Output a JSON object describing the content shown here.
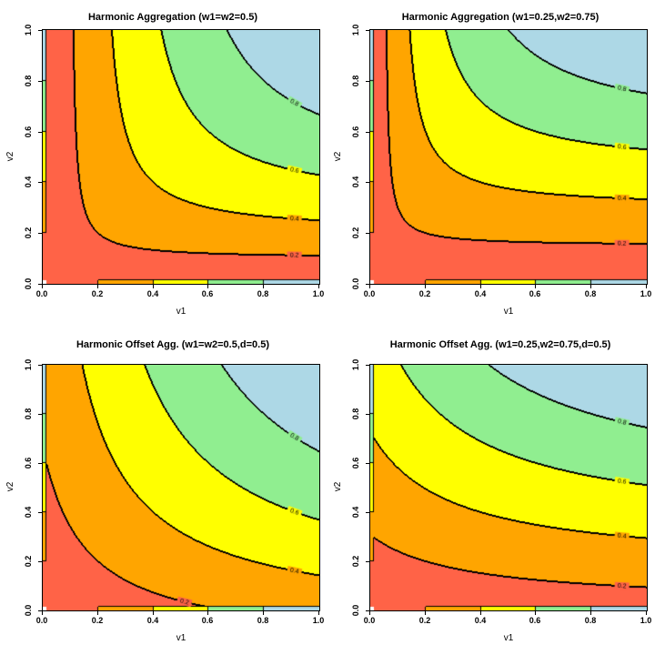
{
  "figure": {
    "background": "#ffffff",
    "description": "2x2 grid of filled contour plots of weighted harmonic aggregation functions"
  },
  "axes": {
    "x_label": "v1",
    "y_label": "v2",
    "x_range": [
      0,
      1
    ],
    "y_range": [
      0,
      1
    ],
    "tick_labels": [
      "0.0",
      "0.2",
      "0.4",
      "0.6",
      "0.8",
      "1.0"
    ],
    "tick_values": [
      0,
      0.2,
      0.4,
      0.6,
      0.8,
      1.0
    ]
  },
  "palette": {
    "band_colors": [
      "#ff6347",
      "#ffa500",
      "#ffff00",
      "#90ee90",
      "#add8e6"
    ],
    "band_color_names": [
      "tomato",
      "orange",
      "yellow",
      "lightgreen",
      "lightblue"
    ],
    "band_edges": [
      0.0,
      0.2,
      0.4,
      0.6,
      0.8,
      1.0
    ],
    "contour_line_color": "#000000",
    "text_color": "#000000"
  },
  "chart_data": {
    "type": "heatmap",
    "subtype": "filled-contour",
    "levels": [
      0.2,
      0.4,
      0.6,
      0.8
    ],
    "contour_label_texts": [
      "0.2",
      "0.4",
      "0.6",
      "0.8"
    ],
    "edge_strips": {
      "left_strip": "at v1=0 the plotted value equals v2 (bands red/orange/yellow/green/blue bottom to top)",
      "bottom_strip": "at v2=0 the plotted value equals v1 (bands red/orange/yellow/green/blue left to right)",
      "corner": "white (undefined at v1=v2=0)"
    },
    "panels": [
      {
        "title": "Harmonic Aggregation (w1=w2=0.5)",
        "formula": "1/(w1/v1 + w2/v2)",
        "w1": 0.5,
        "w2": 0.5,
        "d": null
      },
      {
        "title": "Harmonic Aggregation (w1=0.25,w2=0.75)",
        "formula": "1/(w1/v1 + w2/v2)",
        "w1": 0.25,
        "w2": 0.75,
        "d": null
      },
      {
        "title": "Harmonic Offset Agg. (w1=w2=0.5,d=0.5)",
        "formula": "1/(w1/(v1+d) + w2/(v2+d)) - d",
        "w1": 0.5,
        "w2": 0.5,
        "d": 0.5
      },
      {
        "title": "Harmonic Offset Agg. (w1=0.25,w2=0.75,d=0.5)",
        "formula": "1/(w1/(v1+d) + w2/(v2+d)) - d",
        "w1": 0.25,
        "w2": 0.75,
        "d": 0.5
      }
    ]
  }
}
